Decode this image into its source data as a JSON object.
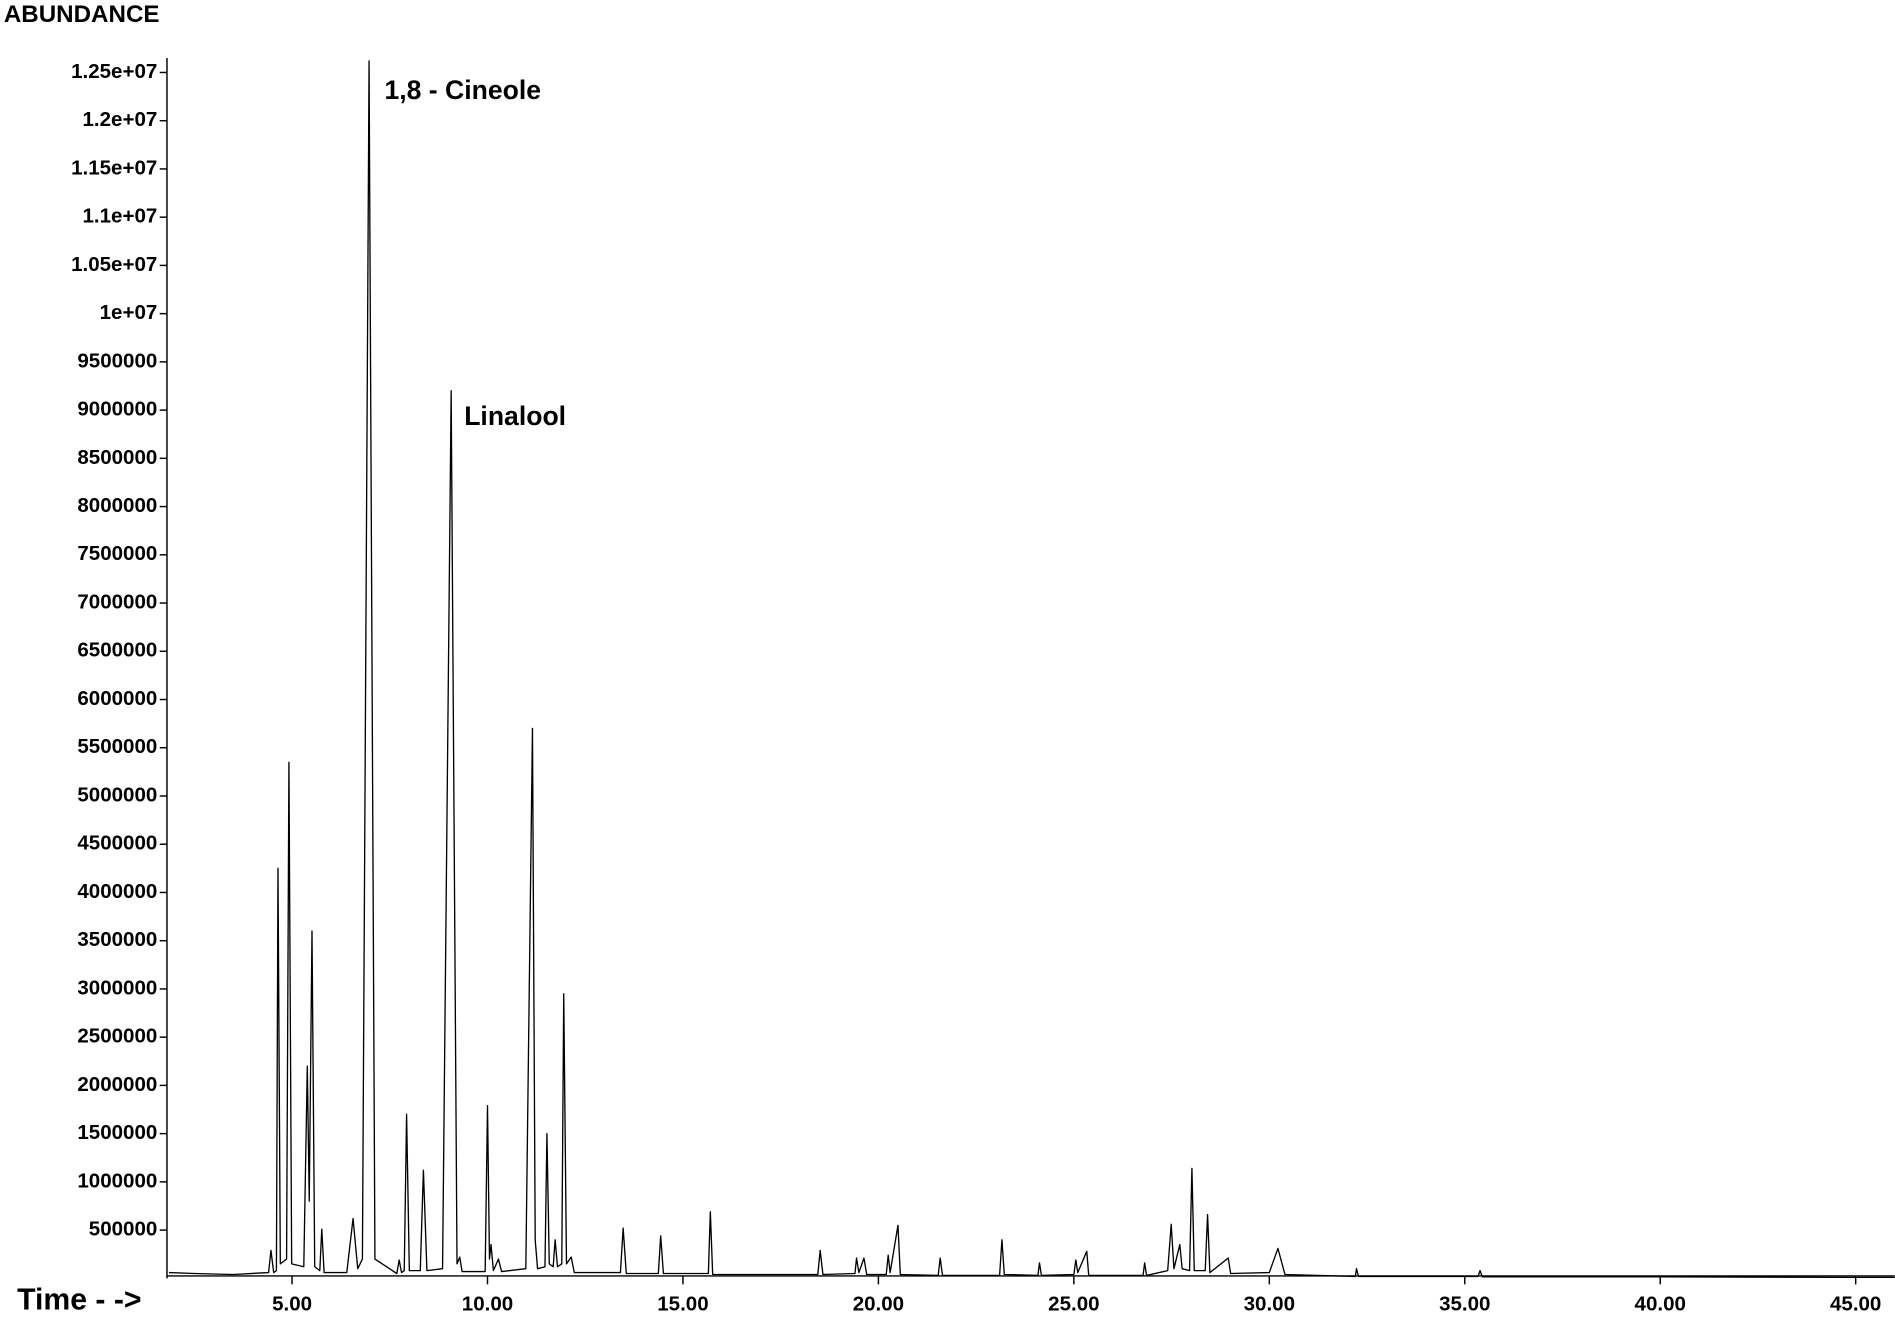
{
  "chart_data": {
    "type": "line",
    "y_label": "ABUNDANCE",
    "x_label": "Time - ->",
    "annotations": [
      "1,8 - Cineole",
      "Linalool"
    ],
    "color": "#000000",
    "xlim": [
      1.8,
      46
    ],
    "ylim": [
      0,
      12650000
    ],
    "xticks": [
      {
        "value": 5,
        "label": "5.00"
      },
      {
        "value": 10,
        "label": "10.00"
      },
      {
        "value": 15,
        "label": "15.00"
      },
      {
        "value": 20,
        "label": "20.00"
      },
      {
        "value": 25,
        "label": "25.00"
      },
      {
        "value": 30,
        "label": "30.00"
      },
      {
        "value": 35,
        "label": "35.00"
      },
      {
        "value": 40,
        "label": "40.00"
      },
      {
        "value": 45,
        "label": "45.00"
      }
    ],
    "yticks": [
      500000,
      1000000,
      1500000,
      2000000,
      2500000,
      3000000,
      3500000,
      4000000,
      4500000,
      5000000,
      5500000,
      6000000,
      6500000,
      7000000,
      7500000,
      8000000,
      8500000,
      9000000,
      9500000,
      {
        "value": 10000000,
        "label": "1e+07"
      },
      {
        "value": 10500000,
        "label": "1.05e+07"
      },
      {
        "value": 11000000,
        "label": "1.1e+07"
      },
      {
        "value": 11500000,
        "label": "1.15e+07"
      },
      {
        "value": 12000000,
        "label": "1.2e+07"
      },
      {
        "value": 12500000,
        "label": "1.25e+07"
      }
    ],
    "x": [
      1.85,
      2.5,
      3.5,
      4.4,
      4.46,
      4.53,
      4.6,
      4.64,
      4.7,
      4.86,
      4.92,
      4.99,
      5.3,
      5.39,
      5.44,
      5.51,
      5.58,
      5.71,
      5.76,
      5.82,
      6.4,
      6.56,
      6.68,
      6.8,
      6.97,
      7.12,
      7.68,
      7.74,
      7.8,
      7.87,
      7.93,
      8.0,
      8.28,
      8.36,
      8.45,
      8.85,
      9.07,
      9.22,
      9.29,
      9.35,
      9.94,
      10.0,
      10.05,
      10.09,
      10.15,
      10.28,
      10.36,
      10.98,
      11.15,
      11.22,
      11.28,
      11.47,
      11.52,
      11.58,
      11.68,
      11.73,
      11.79,
      11.9,
      11.95,
      12.02,
      12.14,
      12.22,
      13.4,
      13.47,
      13.55,
      14.37,
      14.43,
      14.5,
      15.65,
      15.7,
      15.76,
      18.45,
      18.51,
      18.58,
      19.4,
      19.44,
      19.5,
      19.63,
      19.7,
      20.2,
      20.25,
      20.3,
      20.5,
      20.56,
      21.53,
      21.58,
      21.64,
      23.1,
      23.16,
      23.22,
      24.08,
      24.12,
      24.17,
      25.0,
      25.05,
      25.1,
      25.33,
      25.38,
      26.77,
      26.81,
      26.86,
      27.4,
      27.49,
      27.56,
      27.71,
      27.77,
      27.96,
      28.02,
      28.08,
      28.36,
      28.42,
      28.48,
      28.95,
      29.01,
      30.0,
      30.22,
      30.4,
      32.2,
      32.23,
      32.28,
      35.34,
      35.39,
      35.45,
      40,
      45,
      46
    ],
    "values": [
      60000,
      50000,
      40000,
      60000,
      290000,
      60000,
      80000,
      4250000,
      150000,
      200000,
      5350000,
      150000,
      120000,
      2200000,
      800000,
      3600000,
      120000,
      80000,
      510000,
      60000,
      60000,
      620000,
      100000,
      200000,
      12620000,
      200000,
      50000,
      190000,
      60000,
      80000,
      1700000,
      80000,
      80000,
      1120000,
      80000,
      100000,
      9200000,
      150000,
      220000,
      70000,
      70000,
      1790000,
      200000,
      350000,
      80000,
      200000,
      70000,
      100000,
      5700000,
      400000,
      100000,
      120000,
      1500000,
      150000,
      120000,
      400000,
      120000,
      150000,
      2950000,
      150000,
      220000,
      60000,
      60000,
      520000,
      50000,
      50000,
      440000,
      50000,
      50000,
      690000,
      40000,
      40000,
      290000,
      40000,
      50000,
      210000,
      60000,
      210000,
      40000,
      40000,
      240000,
      60000,
      550000,
      40000,
      30000,
      210000,
      30000,
      30000,
      400000,
      40000,
      30000,
      160000,
      30000,
      40000,
      190000,
      60000,
      280000,
      30000,
      30000,
      160000,
      30000,
      80000,
      560000,
      100000,
      350000,
      100000,
      80000,
      1140000,
      80000,
      80000,
      660000,
      60000,
      210000,
      50000,
      60000,
      310000,
      40000,
      20000,
      100000,
      20000,
      20000,
      80000,
      15000,
      15000,
      10000,
      10000
    ]
  }
}
